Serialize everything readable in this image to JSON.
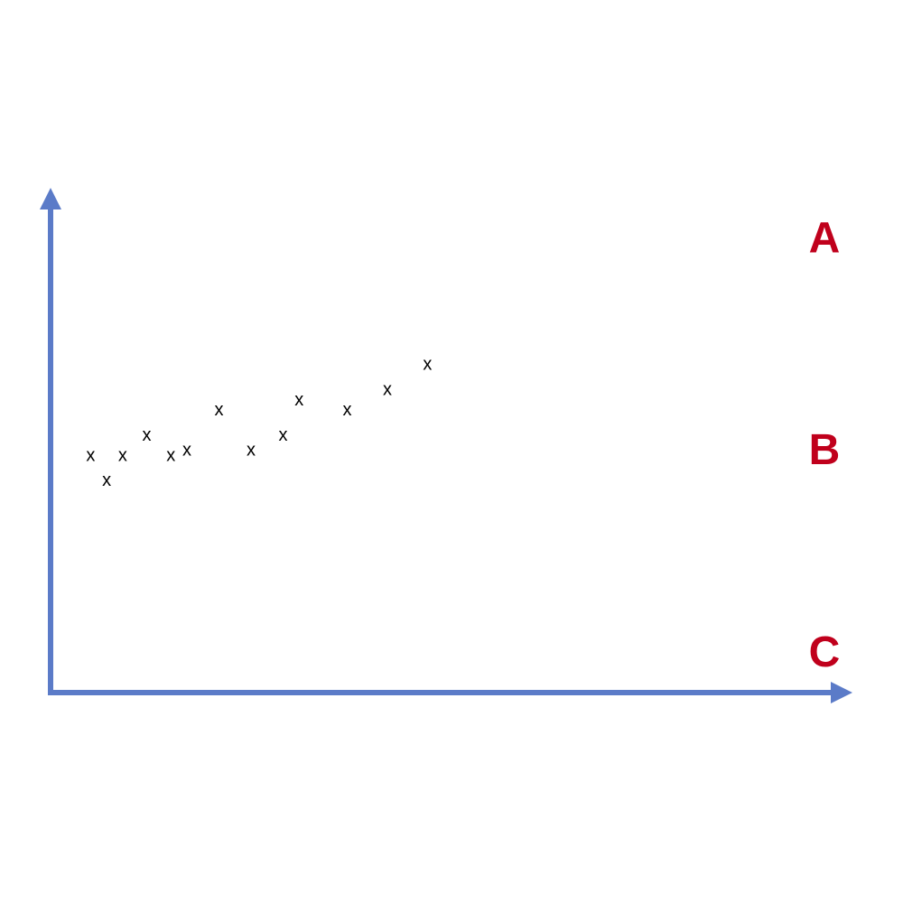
{
  "chart_data": {
    "type": "scatter",
    "title": "",
    "xlabel": "",
    "ylabel": "",
    "xlim": [
      0,
      100
    ],
    "ylim": [
      0,
      100
    ],
    "grid": false,
    "axis_color": "#5B7BC8",
    "marker": "x",
    "marker_color": "#000000",
    "points": [
      {
        "x": 5,
        "y": 47
      },
      {
        "x": 7,
        "y": 42
      },
      {
        "x": 9,
        "y": 47
      },
      {
        "x": 12,
        "y": 51
      },
      {
        "x": 15,
        "y": 47
      },
      {
        "x": 17,
        "y": 48
      },
      {
        "x": 21,
        "y": 56
      },
      {
        "x": 25,
        "y": 48
      },
      {
        "x": 29,
        "y": 51
      },
      {
        "x": 31,
        "y": 58
      },
      {
        "x": 37,
        "y": 56
      },
      {
        "x": 42,
        "y": 60
      },
      {
        "x": 47,
        "y": 65
      }
    ],
    "annotations": [
      {
        "text": "A",
        "level": 90
      },
      {
        "text": "B",
        "level": 48
      },
      {
        "text": "C",
        "level": 8
      }
    ],
    "annotation_color": "#C0001C"
  }
}
